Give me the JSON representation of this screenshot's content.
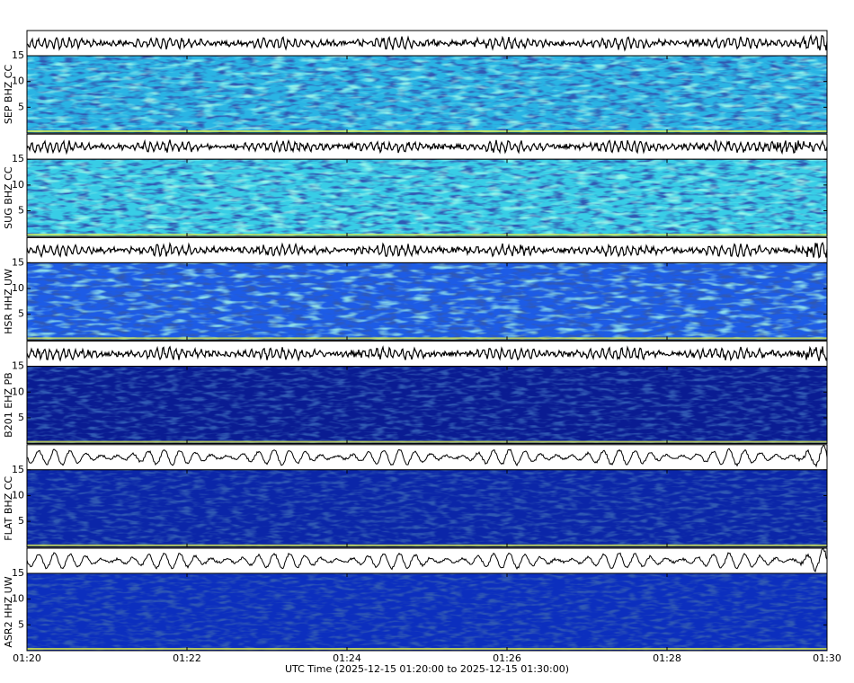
{
  "chart_data": {
    "type": "spectrogram",
    "xlabel": "UTC Time (2025-12-15 01:20:00 to 2025-12-15 01:30:00)",
    "xticks": [
      "01:20",
      "01:22",
      "01:24",
      "01:26",
      "01:28",
      "01:30"
    ],
    "ylim": [
      0,
      15
    ],
    "yticks": [
      5,
      10,
      15
    ],
    "panels": [
      {
        "label": "SEP BHZ CC",
        "color": "#2ab4e4"
      },
      {
        "label": "SUG BHZ CC",
        "color": "#38cde6"
      },
      {
        "label": "HSR HHZ UW",
        "color": "#1d5ce6"
      },
      {
        "label": "B201 EHZ PB",
        "color": "#0a1c92"
      },
      {
        "label": "FLAT BHZ CC",
        "color": "#0b26a8"
      },
      {
        "label": "ASR2 HHZ UW",
        "color": "#0c2fbe"
      }
    ]
  }
}
